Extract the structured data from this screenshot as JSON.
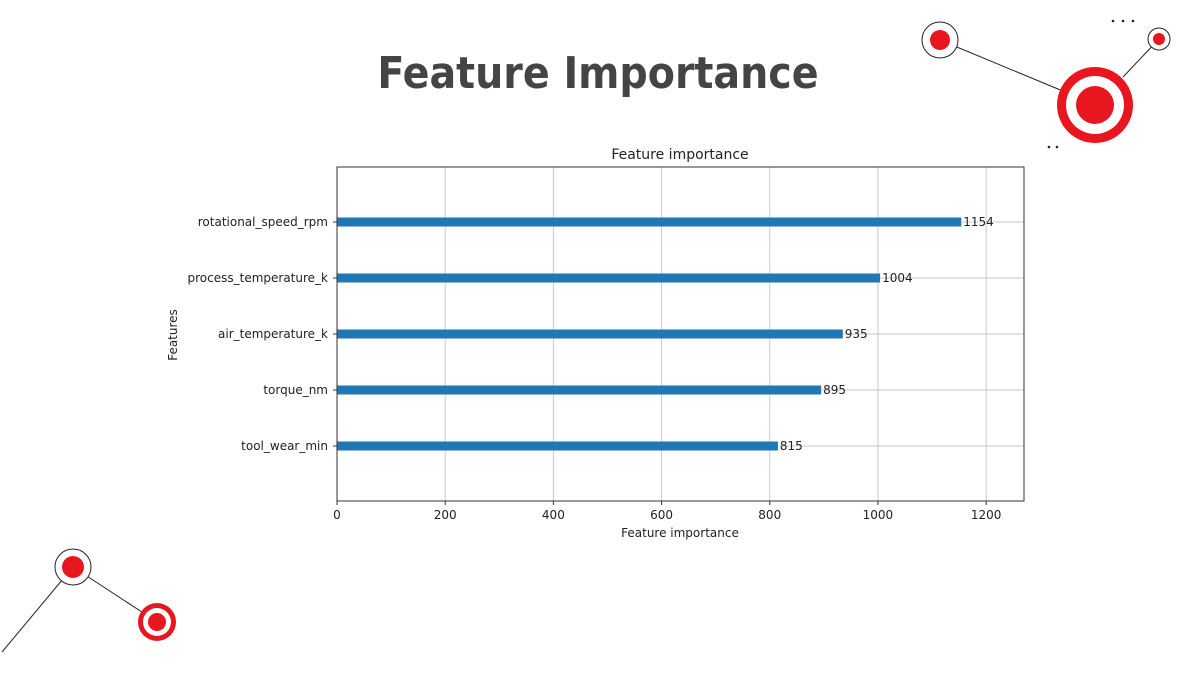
{
  "slide": {
    "title": "Feature Importance",
    "title_color": "#444444"
  },
  "decorations": {
    "accent_color": "#e8161e",
    "line_color": "#222222"
  },
  "chart_data": {
    "type": "bar",
    "orientation": "horizontal",
    "title": "Feature importance",
    "xlabel": "Feature importance",
    "ylabel": "Features",
    "categories": [
      "rotational_speed_rpm",
      "process_temperature_k",
      "air_temperature_k",
      "torque_nm",
      "tool_wear_min"
    ],
    "values": [
      1154,
      1004,
      935,
      895,
      815
    ],
    "value_labels": [
      "1154",
      "1004",
      "935",
      "895",
      "815"
    ],
    "xlim": [
      0,
      1270
    ],
    "xticks": [
      0,
      200,
      400,
      600,
      800,
      1000,
      1200
    ],
    "xtick_labels": [
      "0",
      "200",
      "400",
      "600",
      "800",
      "1000",
      "1200"
    ],
    "grid": true,
    "bar_color": "#1f77b4"
  }
}
